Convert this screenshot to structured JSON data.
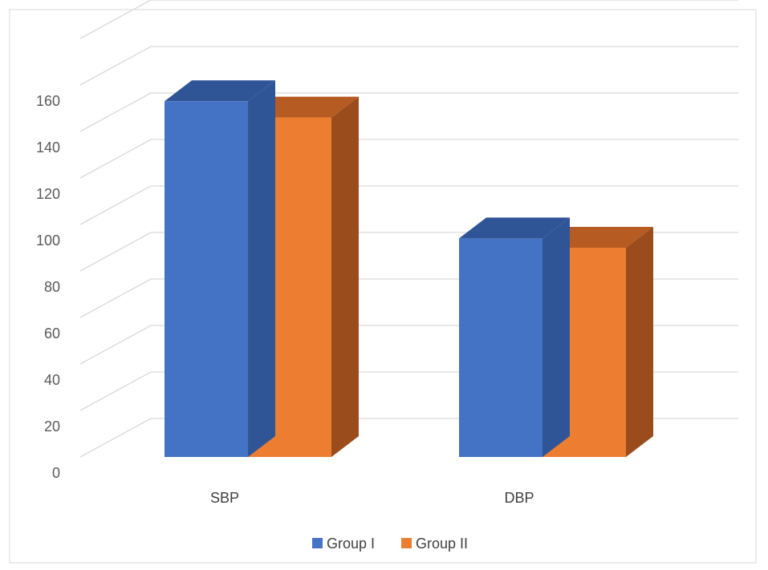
{
  "chart_data": {
    "type": "bar",
    "categories": [
      "SBP",
      "DBP"
    ],
    "series": [
      {
        "name": "Group I",
        "values": [
          153,
          94
        ],
        "color": "#4472C4",
        "top_color": "#2F5597",
        "side_color": "#2F5597"
      },
      {
        "name": "Group II",
        "values": [
          146,
          90
        ],
        "color": "#ED7D31",
        "top_color": "#B65B21",
        "side_color": "#9A4C1C"
      }
    ],
    "ylim": [
      0,
      180
    ],
    "yticks": [
      0,
      20,
      40,
      60,
      80,
      100,
      120,
      140,
      160
    ],
    "title": "",
    "xlabel": "",
    "ylabel": "",
    "grid": true,
    "legend": "bottom",
    "three_d": true
  }
}
